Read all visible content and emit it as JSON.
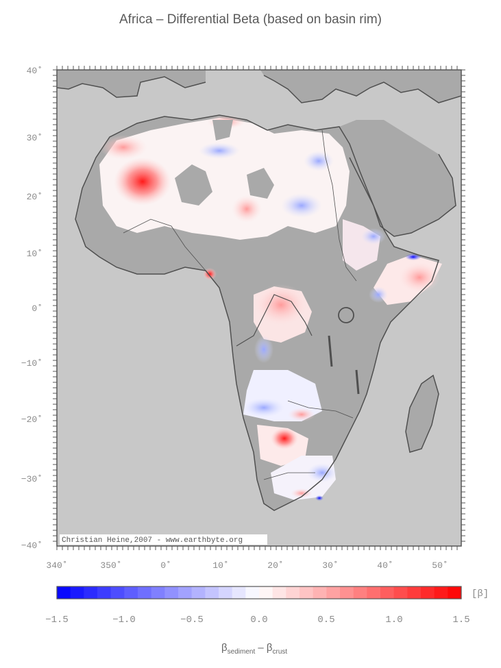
{
  "title": "Africa – Differential Beta (based on basin rim)",
  "map": {
    "lat_labels": [
      "40˚",
      "30˚",
      "20˚",
      "10˚",
      "0˚",
      "−10˚",
      "−20˚",
      "−30˚",
      "−40˚"
    ],
    "lon_labels": [
      "340˚",
      "350˚",
      "0˚",
      "10˚",
      "20˚",
      "30˚",
      "40˚",
      "50˚"
    ],
    "credit": "Christian Heine,2007 - www.earthbyte.org",
    "ocean_color": "#c8c8c8",
    "land_color": "#a9a9a9",
    "coast_color": "#4f4f4f"
  },
  "colorbar": {
    "labels": [
      "−1.5",
      "−1.0",
      "−0.5",
      "0.0",
      "0.5",
      "1.0",
      "1.5"
    ],
    "min_value": -1.5,
    "max_value": 1.5,
    "unit": "[β]",
    "low_color": "#0000ff",
    "mid_color": "#ffffff",
    "high_color": "#ff0000",
    "xlabel_main": "β",
    "xlabel_sub1": "sediment",
    "xlabel_mid": " – β",
    "xlabel_sub2": "crust"
  }
}
